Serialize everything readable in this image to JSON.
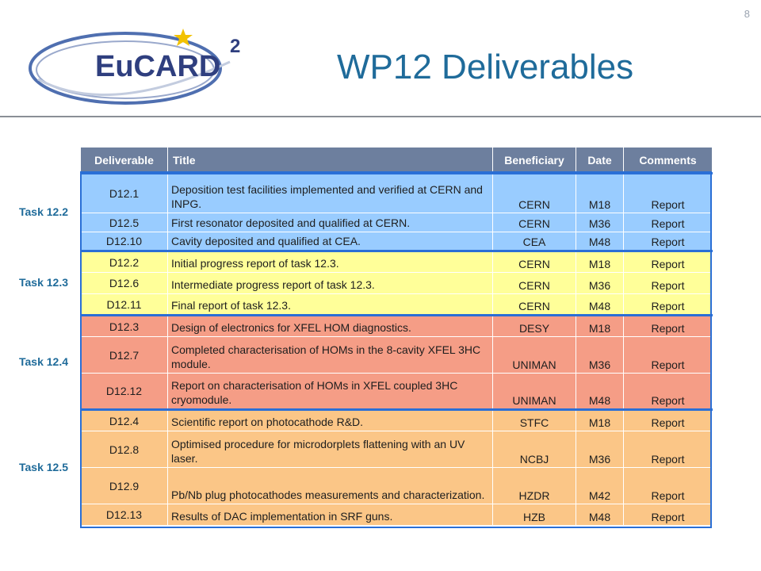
{
  "page_number": "8",
  "logo": {
    "text": "EuCARD",
    "superscript": "2"
  },
  "title": "WP12 Deliverables",
  "table": {
    "headers": {
      "deliverable": "Deliverable",
      "title": "Title",
      "beneficiary": "Beneficiary",
      "date": "Date",
      "comments": "Comments"
    },
    "groups": [
      {
        "task": "Task 12.2",
        "color": "#99ccff",
        "rows": [
          {
            "id": "D12.1",
            "title": "Deposition test facilities implemented and verified at CERN and INPG.",
            "beneficiary": "CERN",
            "date": "M18",
            "comments": "Report"
          },
          {
            "id": "D12.5",
            "title": "First resonator deposited and qualified at CERN.",
            "beneficiary": "CERN",
            "date": "M36",
            "comments": "Report"
          },
          {
            "id": "D12.10",
            "title": "Cavity deposited and qualified at CEA.",
            "beneficiary": "CEA",
            "date": "M48",
            "comments": "Report"
          }
        ]
      },
      {
        "task": "Task 12.3",
        "color": "#ffff99",
        "rows": [
          {
            "id": "D12.2",
            "title": "Initial progress report of task 12.3.",
            "beneficiary": "CERN",
            "date": "M18",
            "comments": "Report"
          },
          {
            "id": "D12.6",
            "title": "Intermediate progress report of task 12.3.",
            "beneficiary": "CERN",
            "date": "M36",
            "comments": "Report"
          },
          {
            "id": "D12.11",
            "title": "Final report of task 12.3.",
            "beneficiary": "CERN",
            "date": "M48",
            "comments": "Report"
          }
        ]
      },
      {
        "task": "Task 12.4",
        "color": "#f59d86",
        "rows": [
          {
            "id": "D12.3",
            "title": "Design of electronics for XFEL HOM diagnostics.",
            "beneficiary": "DESY",
            "date": "M18",
            "comments": "Report"
          },
          {
            "id": "D12.7",
            "title": "Completed characterisation of HOMs in the 8-cavity XFEL 3HC module.",
            "beneficiary": "UNIMAN",
            "date": "M36",
            "comments": "Report"
          },
          {
            "id": "D12.12",
            "title": "Report on characterisation of HOMs in XFEL coupled 3HC cryomodule.",
            "beneficiary": "UNIMAN",
            "date": "M48",
            "comments": "Report"
          }
        ]
      },
      {
        "task": "Task 12.5",
        "color": "#fbc687",
        "rows": [
          {
            "id": "D12.4",
            "title": "Scientific report on photocathode R&D.",
            "beneficiary": "STFC",
            "date": "M18",
            "comments": "Report"
          },
          {
            "id": "D12.8",
            "title": "Optimised procedure for microdorplets flattening with an UV laser.",
            "beneficiary": "NCBJ",
            "date": "M36",
            "comments": "Report"
          },
          {
            "id": "D12.9",
            "title": "Pb/Nb plug photocathodes measurements and characterization.",
            "beneficiary": "HZDR",
            "date": "M42",
            "comments": "Report"
          },
          {
            "id": "D12.13",
            "title": "Results of DAC implementation in SRF guns.",
            "beneficiary": "HZB",
            "date": "M48",
            "comments": "Report"
          }
        ]
      }
    ]
  }
}
